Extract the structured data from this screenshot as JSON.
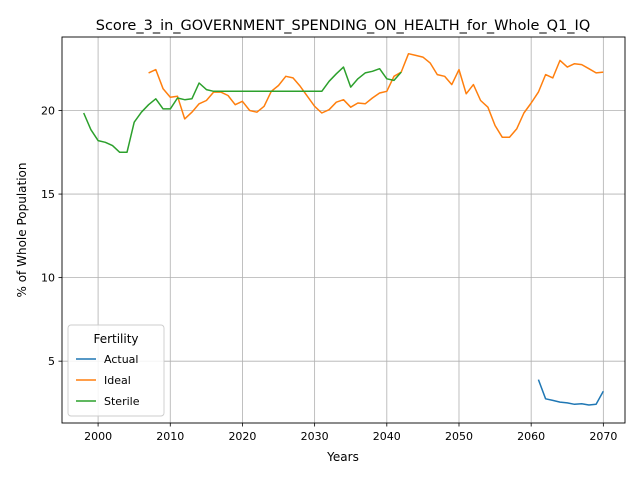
{
  "chart_data": {
    "type": "line",
    "title": "Score_3_in_GOVERNMENT_SPENDING_ON_HEALTH_for_Whole_Q1_IQ",
    "xlabel": "Years",
    "ylabel": "% of Whole Population",
    "xlim": [
      1995,
      2073
    ],
    "ylim": [
      1.3,
      24.4
    ],
    "xticks": [
      2000,
      2010,
      2020,
      2030,
      2040,
      2050,
      2060,
      2070
    ],
    "yticks": [
      5,
      10,
      15,
      20
    ],
    "grid": true,
    "legend": {
      "title": "Fertility",
      "placement": "lower-left"
    },
    "series": [
      {
        "name": "Actual",
        "color": "#1f77b4",
        "x": [
          2061,
          2062,
          2063,
          2064,
          2065,
          2066,
          2067,
          2068,
          2069,
          2070
        ],
        "y": [
          3.9,
          2.75,
          2.65,
          2.55,
          2.5,
          2.42,
          2.45,
          2.38,
          2.42,
          3.2
        ]
      },
      {
        "name": "Ideal",
        "color": "#ff7f0e",
        "x": [
          2007,
          2008,
          2009,
          2010,
          2011,
          2012,
          2013,
          2014,
          2015,
          2016,
          2017,
          2018,
          2019,
          2020,
          2021,
          2022,
          2023,
          2024,
          2025,
          2026,
          2027,
          2028,
          2029,
          2030,
          2031,
          2032,
          2033,
          2034,
          2035,
          2036,
          2037,
          2038,
          2039,
          2040,
          2041,
          2042,
          2043,
          2044,
          2045,
          2046,
          2047,
          2048,
          2049,
          2050,
          2051,
          2052,
          2053,
          2054,
          2055,
          2056,
          2057,
          2058,
          2059,
          2060,
          2061,
          2062,
          2063,
          2064,
          2065,
          2066,
          2067,
          2068,
          2069,
          2070
        ],
        "y": [
          22.25,
          22.45,
          21.3,
          20.8,
          20.85,
          19.5,
          19.9,
          20.4,
          20.6,
          21.1,
          21.1,
          20.9,
          20.35,
          20.55,
          20.0,
          19.9,
          20.25,
          21.15,
          21.5,
          22.05,
          21.95,
          21.45,
          20.85,
          20.25,
          19.85,
          20.05,
          20.5,
          20.65,
          20.2,
          20.45,
          20.4,
          20.75,
          21.05,
          21.15,
          22.05,
          22.3,
          23.4,
          23.3,
          23.2,
          22.85,
          22.15,
          22.05,
          21.55,
          22.45,
          21.0,
          21.55,
          20.6,
          20.2,
          19.1,
          18.4,
          18.4,
          18.9,
          19.85,
          20.45,
          21.1,
          22.15,
          21.95,
          23.0,
          22.6,
          22.8,
          22.75,
          22.5,
          22.25,
          22.3
        ]
      },
      {
        "name": "Sterile",
        "color": "#2ca02c",
        "x": [
          1998,
          1999,
          2000,
          2001,
          2002,
          2003,
          2004,
          2005,
          2006,
          2007,
          2008,
          2009,
          2010,
          2011,
          2012,
          2013,
          2014,
          2015,
          2016,
          2017,
          2018,
          2019,
          2020,
          2021,
          2022,
          2023,
          2024,
          2025,
          2026,
          2027,
          2028,
          2029,
          2030,
          2031,
          2032,
          2033,
          2034,
          2035,
          2036,
          2037,
          2038,
          2039,
          2040,
          2041,
          2042
        ],
        "y": [
          19.85,
          18.85,
          18.2,
          18.1,
          17.9,
          17.5,
          17.5,
          19.3,
          19.9,
          20.35,
          20.7,
          20.1,
          20.1,
          20.75,
          20.65,
          20.7,
          21.65,
          21.25,
          21.15,
          21.15,
          21.15,
          21.15,
          21.15,
          21.15,
          21.15,
          21.15,
          21.15,
          21.15,
          21.15,
          21.15,
          21.15,
          21.15,
          21.15,
          21.15,
          21.75,
          22.2,
          22.6,
          21.4,
          21.9,
          22.25,
          22.35,
          22.5,
          21.9,
          21.8,
          22.3
        ]
      }
    ]
  }
}
